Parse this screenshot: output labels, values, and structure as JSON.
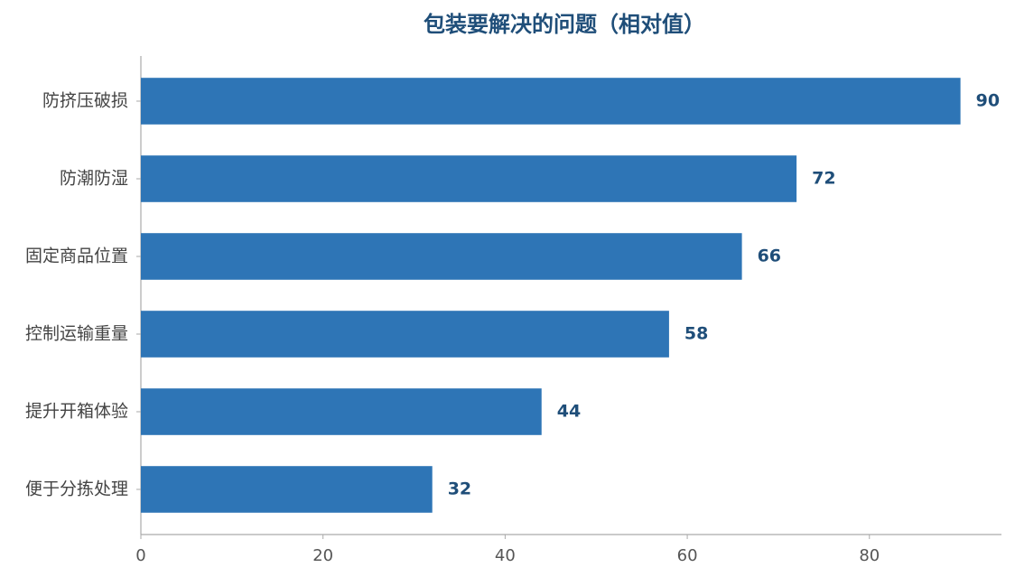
{
  "chart_data": {
    "type": "barh",
    "title": "包装要解决的问题（相对值）",
    "categories": [
      "防挤压破损",
      "防潮防湿",
      "固定商品位置",
      "控制运输重量",
      "提升开箱体验",
      "便于分拣处理"
    ],
    "values": [
      90,
      72,
      66,
      58,
      44,
      32
    ],
    "color": "#2e75b6",
    "xlim": [
      0,
      94.5
    ],
    "xticks": [
      0,
      20,
      40,
      60,
      80
    ],
    "grid": false
  }
}
